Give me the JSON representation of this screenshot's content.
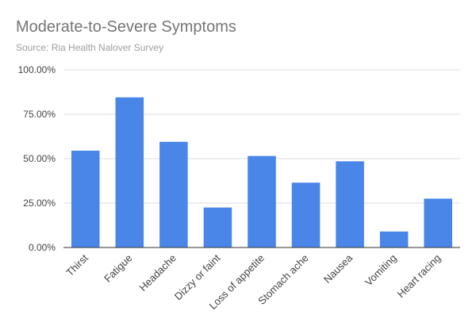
{
  "chart_data": {
    "type": "bar",
    "title": "Moderate-to-Severe Symptoms",
    "subtitle": "Source: Ria Health Nalover Survey",
    "xlabel": "",
    "ylabel": "",
    "categories": [
      "Thirst",
      "Fatigue",
      "Headache",
      "Dizzy or faint",
      "Loss of appetite",
      "Stomach ache",
      "Nausea",
      "Vomiting",
      "Heart racing"
    ],
    "values": [
      54.5,
      84.5,
      59.5,
      22.5,
      51.5,
      36.5,
      48.5,
      9,
      27.5
    ],
    "ylim": [
      0,
      100
    ],
    "yticks": [
      0,
      25,
      50,
      75,
      100
    ],
    "ytick_labels": [
      "0.00%",
      "25.00%",
      "50.00%",
      "75.00%",
      "100.00%"
    ],
    "grid": true,
    "legend": "none",
    "bar_color": "#4a86e8"
  }
}
